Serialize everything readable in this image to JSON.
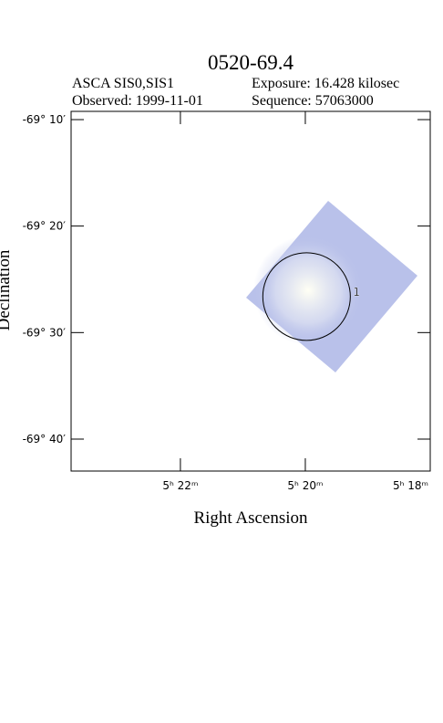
{
  "chart_data": {
    "type": "image",
    "title": "0520-69.4",
    "info": [
      "ASCA SIS0,SIS1",
      "Exposure: 16.428 kilosec",
      "Observed: 1999-11-01",
      "Sequence: 57063000"
    ],
    "x_label": "Right Ascension",
    "y_label": "Declination",
    "xlim": [
      323.75,
      318
    ],
    "xticks": [
      {
        "value": 322,
        "label": "5ʰ 22ᵐ"
      },
      {
        "value": 320,
        "label": "5ʰ 20ᵐ"
      },
      {
        "value": 318,
        "label": "5ʰ 18ᵐ"
      }
    ],
    "ylim": [
      -69.1538,
      -69.7167
    ],
    "yticks": [
      {
        "value": -69.1667,
        "label": "-69° 10′"
      },
      {
        "value": -69.3333,
        "label": "-69° 20′"
      },
      {
        "value": -69.5,
        "label": "-69° 30′"
      },
      {
        "value": -69.6667,
        "label": "-69° 40′"
      }
    ],
    "regions": [
      {
        "label": "1",
        "x": 319.98,
        "y": -69.4436
      }
    ],
    "color": "#b9c1ea"
  }
}
